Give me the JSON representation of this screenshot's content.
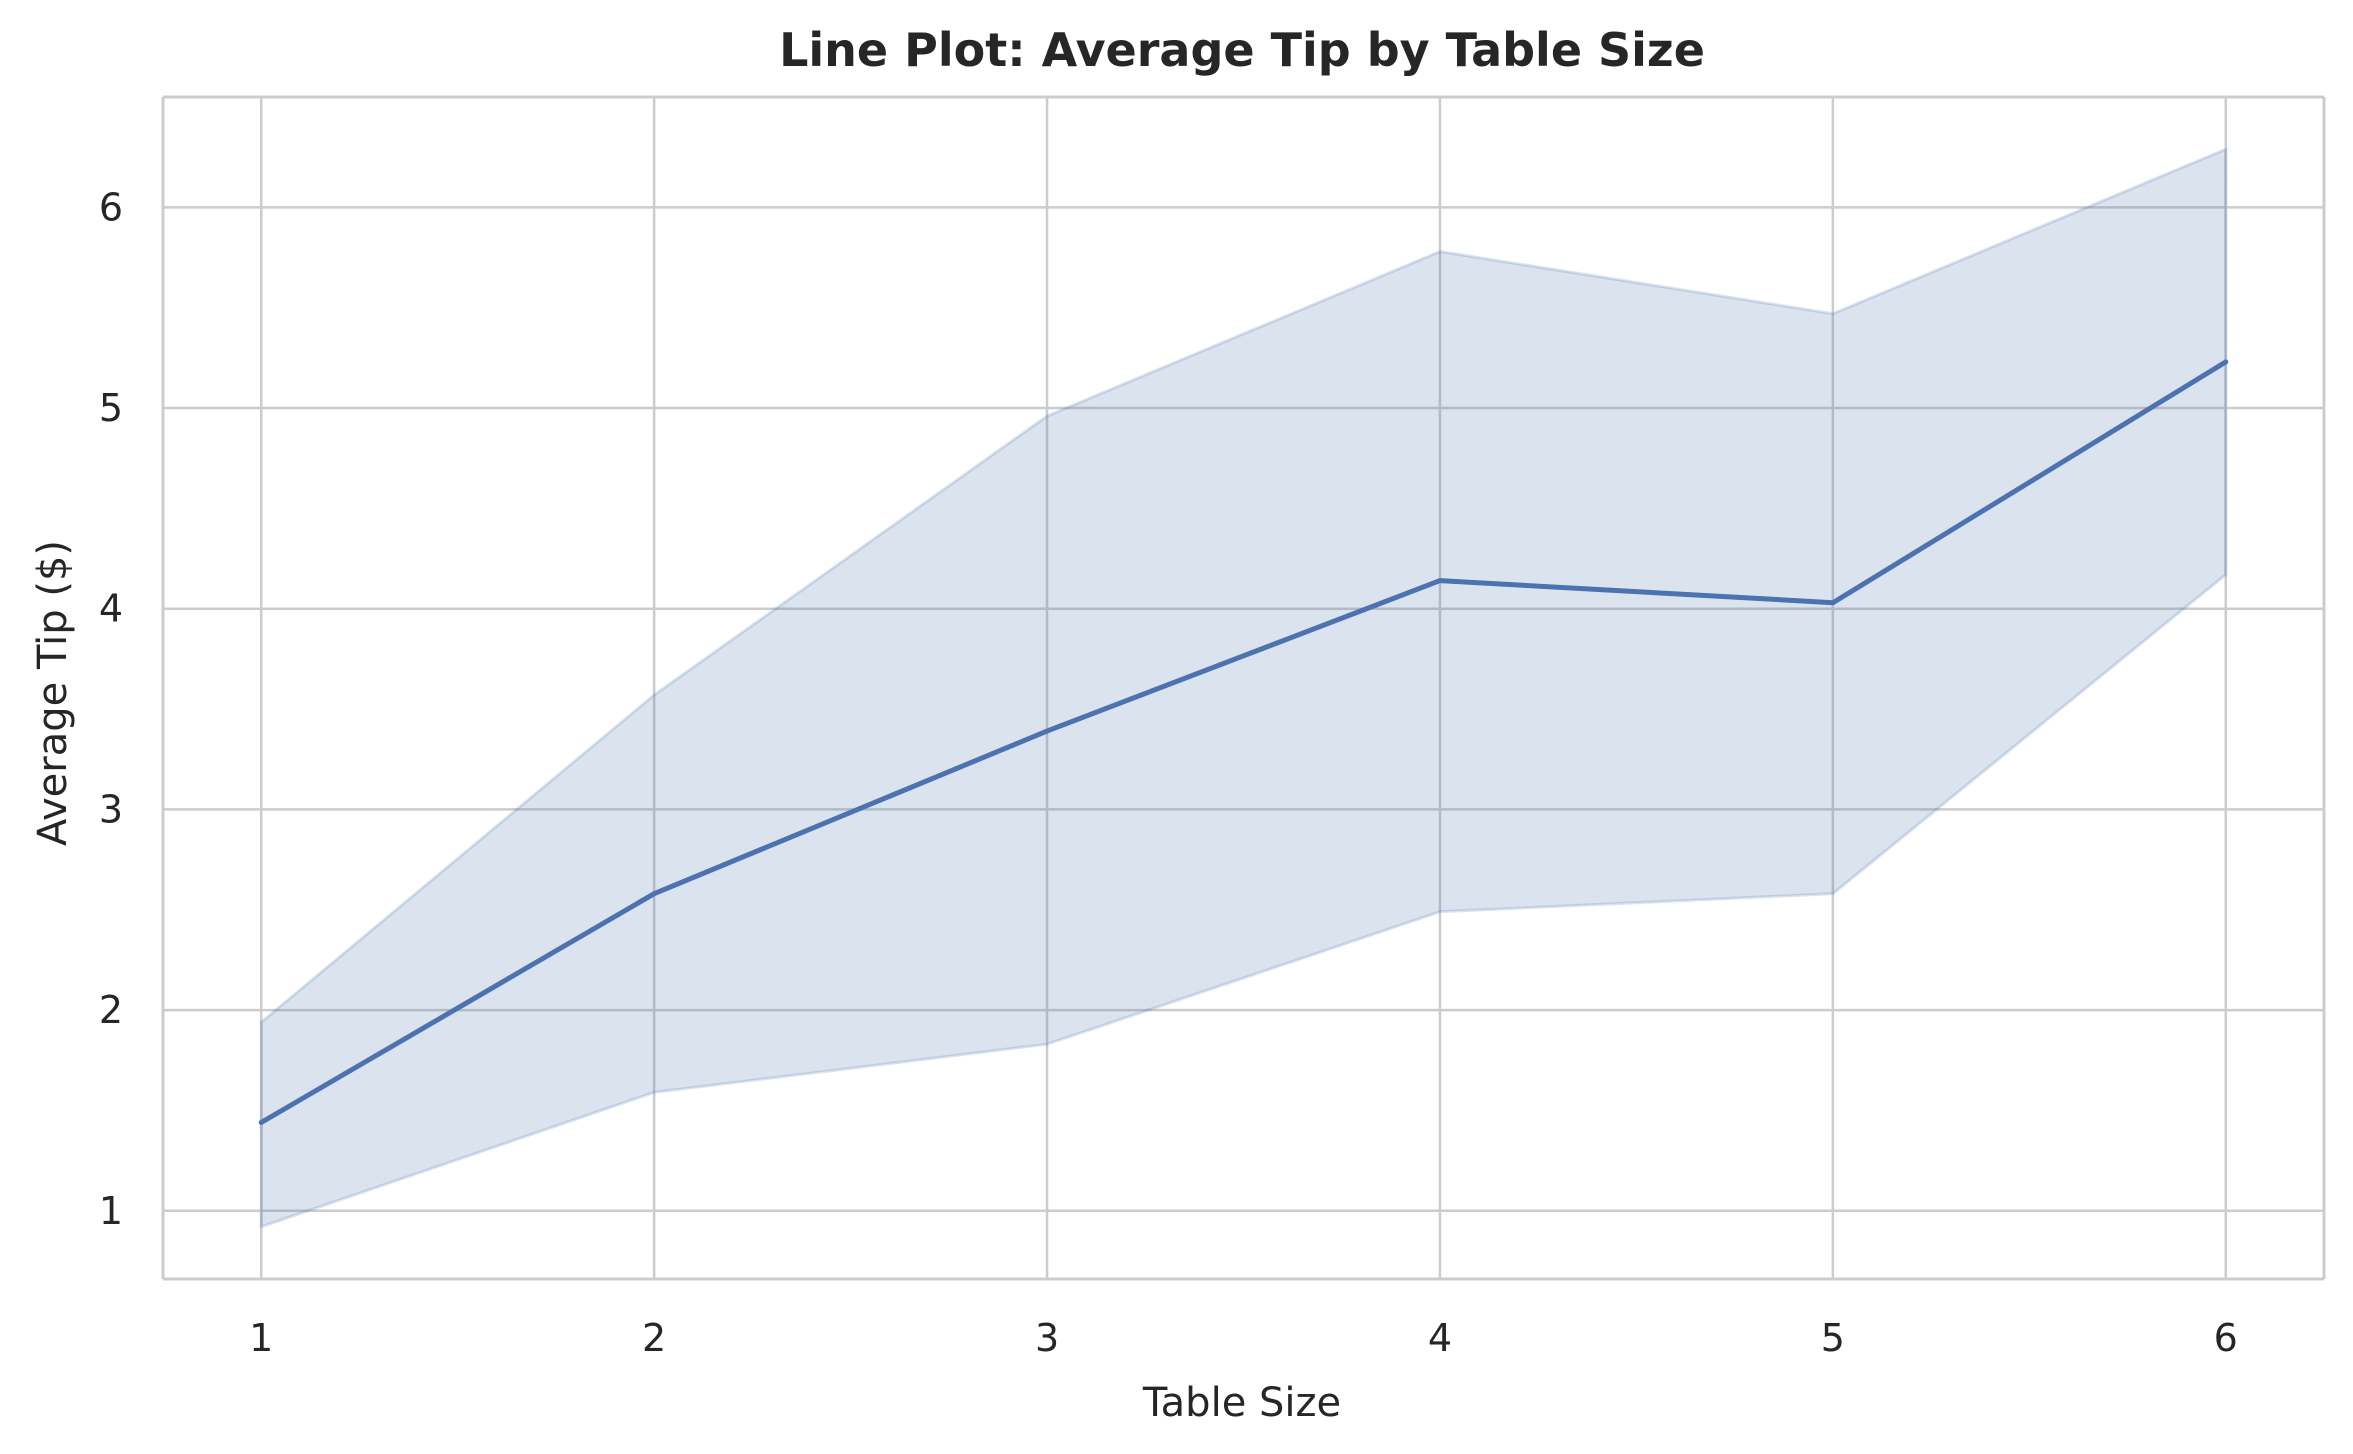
{
  "chart_data": {
    "type": "line",
    "title": "Line Plot: Average Tip by Table Size",
    "xlabel": "Table Size",
    "ylabel": "Average Tip ($)",
    "x": [
      1,
      2,
      3,
      4,
      5,
      6
    ],
    "series": [
      {
        "values": [
          1.44,
          2.58,
          3.39,
          4.14,
          4.03,
          5.23
        ],
        "ci_lower": [
          0.92,
          1.59,
          1.83,
          2.49,
          2.58,
          4.17
        ],
        "ci_upper": [
          1.94,
          3.57,
          4.96,
          5.78,
          5.47,
          6.29
        ]
      }
    ],
    "xticks": [
      "1",
      "2",
      "3",
      "4",
      "5",
      "6"
    ],
    "yticks": [
      "1",
      "2",
      "3",
      "4",
      "5",
      "6"
    ],
    "xlim": [
      0.75,
      6.25
    ],
    "ylim": [
      0.66,
      6.55
    ],
    "grid": true,
    "legend": "none",
    "colors": {
      "line": "#4c72b0",
      "band": "#4c72b0",
      "grid": "#cccccc",
      "spine": "#cccccc",
      "text": "#262626"
    }
  }
}
